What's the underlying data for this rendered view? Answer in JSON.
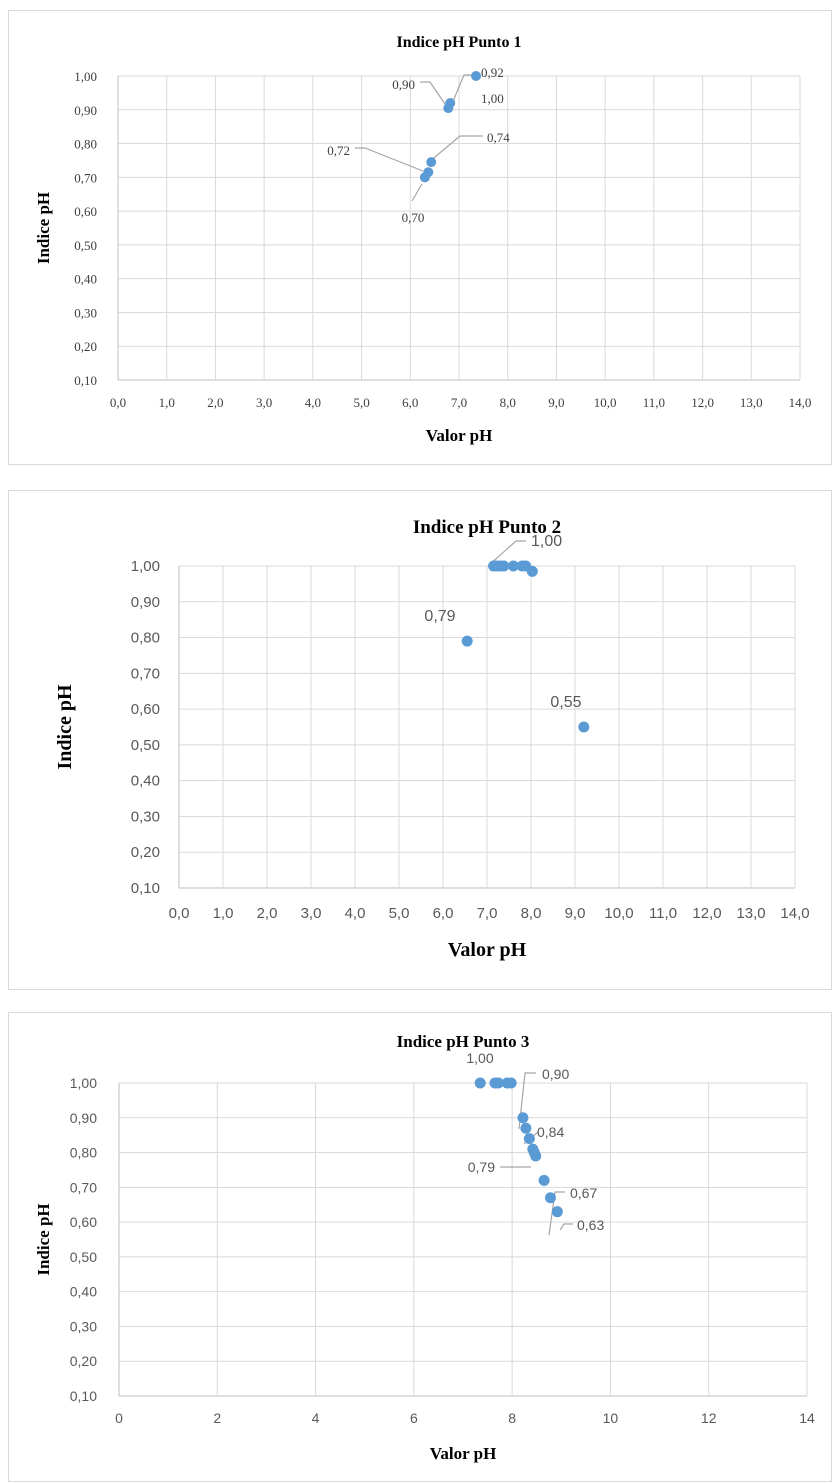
{
  "chart_data": [
    {
      "type": "scatter",
      "title": "Indice pH Punto 1",
      "xlabel": "Valor pH",
      "ylabel": "Indice pH",
      "xlim": [
        0,
        14
      ],
      "ylim": [
        0.1,
        1.0
      ],
      "x_ticks": [
        "0,0",
        "1,0",
        "2,0",
        "3,0",
        "4,0",
        "5,0",
        "6,0",
        "7,0",
        "8,0",
        "9,0",
        "10,0",
        "11,0",
        "12,0",
        "13,0",
        "14,0"
      ],
      "y_ticks": [
        "0,10",
        "0,20",
        "0,30",
        "0,40",
        "0,50",
        "0,60",
        "0,70",
        "0,80",
        "0,90",
        "1,00"
      ],
      "grid": true,
      "points": [
        {
          "x": 7.35,
          "y": 1.0
        },
        {
          "x": 6.82,
          "y": 0.92
        },
        {
          "x": 6.78,
          "y": 0.905
        },
        {
          "x": 6.43,
          "y": 0.745
        },
        {
          "x": 6.37,
          "y": 0.715
        },
        {
          "x": 6.3,
          "y": 0.7
        }
      ],
      "data_labels": [
        "0,92",
        "0,90",
        "1,00",
        "0,74",
        "0,72",
        "0,70"
      ]
    },
    {
      "type": "scatter",
      "title": "Indice pH Punto 2",
      "xlabel": "Valor pH",
      "ylabel": "Indice pH",
      "xlim": [
        0,
        14
      ],
      "ylim": [
        0.1,
        1.0
      ],
      "x_ticks": [
        "0,0",
        "1,0",
        "2,0",
        "3,0",
        "4,0",
        "5,0",
        "6,0",
        "7,0",
        "8,0",
        "9,0",
        "10,0",
        "11,0",
        "12,0",
        "13,0",
        "14,0"
      ],
      "y_ticks": [
        "0,10",
        "0,20",
        "0,30",
        "0,40",
        "0,50",
        "0,60",
        "0,70",
        "0,80",
        "0,90",
        "1,00"
      ],
      "grid": true,
      "points": [
        {
          "x": 7.15,
          "y": 1.0
        },
        {
          "x": 7.22,
          "y": 1.0
        },
        {
          "x": 7.3,
          "y": 1.0
        },
        {
          "x": 7.38,
          "y": 1.0
        },
        {
          "x": 7.6,
          "y": 1.0
        },
        {
          "x": 7.8,
          "y": 1.0
        },
        {
          "x": 7.88,
          "y": 1.0
        },
        {
          "x": 8.03,
          "y": 0.985
        },
        {
          "x": 6.55,
          "y": 0.79
        },
        {
          "x": 9.2,
          "y": 0.55
        }
      ],
      "data_labels": [
        "1,00",
        "0,79",
        "0,55"
      ]
    },
    {
      "type": "scatter",
      "title": "Indice pH Punto 3",
      "xlabel": "Valor pH",
      "ylabel": "Indice pH",
      "xlim": [
        0,
        14
      ],
      "ylim": [
        0.1,
        1.0
      ],
      "x_ticks": [
        "0",
        "2",
        "4",
        "6",
        "8",
        "10",
        "12",
        "14"
      ],
      "y_ticks": [
        "0,10",
        "0,20",
        "0,30",
        "0,40",
        "0,50",
        "0,60",
        "0,70",
        "0,80",
        "0,90",
        "1,00"
      ],
      "grid": true,
      "points": [
        {
          "x": 7.35,
          "y": 1.0
        },
        {
          "x": 7.65,
          "y": 1.0
        },
        {
          "x": 7.72,
          "y": 1.0
        },
        {
          "x": 7.9,
          "y": 1.0
        },
        {
          "x": 7.98,
          "y": 1.0
        },
        {
          "x": 8.22,
          "y": 0.9
        },
        {
          "x": 8.28,
          "y": 0.87
        },
        {
          "x": 8.35,
          "y": 0.84
        },
        {
          "x": 8.42,
          "y": 0.81
        },
        {
          "x": 8.45,
          "y": 0.8
        },
        {
          "x": 8.48,
          "y": 0.79
        },
        {
          "x": 8.65,
          "y": 0.72
        },
        {
          "x": 8.78,
          "y": 0.67
        },
        {
          "x": 8.92,
          "y": 0.63
        }
      ],
      "data_labels": [
        "1,00",
        "0,90",
        "0,84",
        "0,79",
        "0,67",
        "0,63"
      ]
    }
  ]
}
